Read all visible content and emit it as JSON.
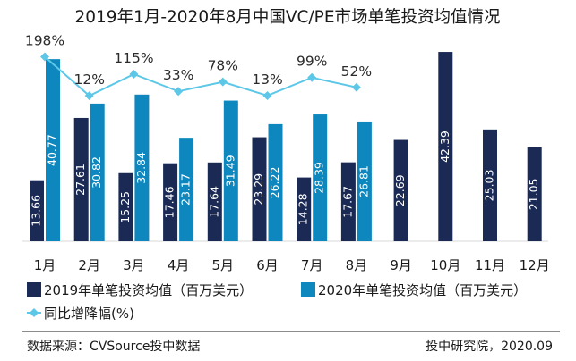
{
  "chart_data": {
    "type": "bar",
    "title": "2019年1月-2020年8月中国VC/PE市场单笔投资均值情况",
    "categories": [
      "1月",
      "2月",
      "3月",
      "4月",
      "5月",
      "6月",
      "7月",
      "8月",
      "9月",
      "10月",
      "11月",
      "12月"
    ],
    "series": [
      {
        "name": "2019年单笔投资均值（百万美元）",
        "color": "#1b2a55",
        "values": [
          13.66,
          27.61,
          15.25,
          17.46,
          17.64,
          23.29,
          14.28,
          17.67,
          22.69,
          42.39,
          25.03,
          21.05
        ]
      },
      {
        "name": "2020年单笔投资均值（百万美元）",
        "color": "#0d87bd",
        "values": [
          40.77,
          30.82,
          32.84,
          23.17,
          31.49,
          26.22,
          28.39,
          26.81,
          null,
          null,
          null,
          null
        ]
      }
    ],
    "line_series": {
      "name": "同比增降幅(%)",
      "color": "#5dc7e8",
      "values": [
        198,
        12,
        115,
        33,
        78,
        13,
        99,
        52
      ],
      "labels": [
        "198%",
        "12%",
        "115%",
        "33%",
        "78%",
        "13%",
        "99%",
        "52%"
      ]
    },
    "ylim": [
      0,
      45
    ]
  },
  "footer": {
    "source": "数据来源：CVSource投中数据",
    "publisher": "投中研究院，2020.09"
  }
}
